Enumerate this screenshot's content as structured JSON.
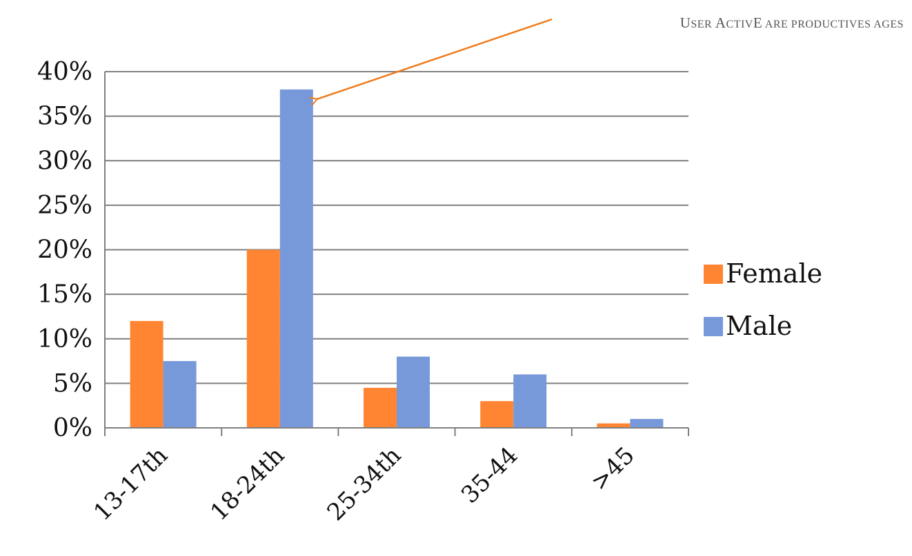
{
  "colors": {
    "female": "#FF8533",
    "male": "#7799D9",
    "grid": "#7f7f7f",
    "arrow": "#F07A1A"
  },
  "chart_data": {
    "type": "bar",
    "categories": [
      "13-17th",
      "18-24th",
      "25-34th",
      "35-44",
      ">45"
    ],
    "series": [
      {
        "name": "Female",
        "values": [
          12,
          20,
          4.5,
          3,
          0.5
        ]
      },
      {
        "name": "Male",
        "values": [
          7.5,
          38,
          8,
          6,
          1
        ]
      }
    ],
    "ylim": [
      0,
      40
    ],
    "yticks": [
      "0%",
      "5%",
      "10%",
      "15%",
      "20%",
      "25%",
      "30%",
      "35%",
      "40%"
    ],
    "ytick_values": [
      0,
      5,
      10,
      15,
      20,
      25,
      30,
      35,
      40
    ],
    "grid": true,
    "legend_position": "right",
    "annotation": {
      "text": "User ActivE are productives ages",
      "points_to": {
        "category": "18-24th",
        "series": "Male"
      }
    }
  }
}
